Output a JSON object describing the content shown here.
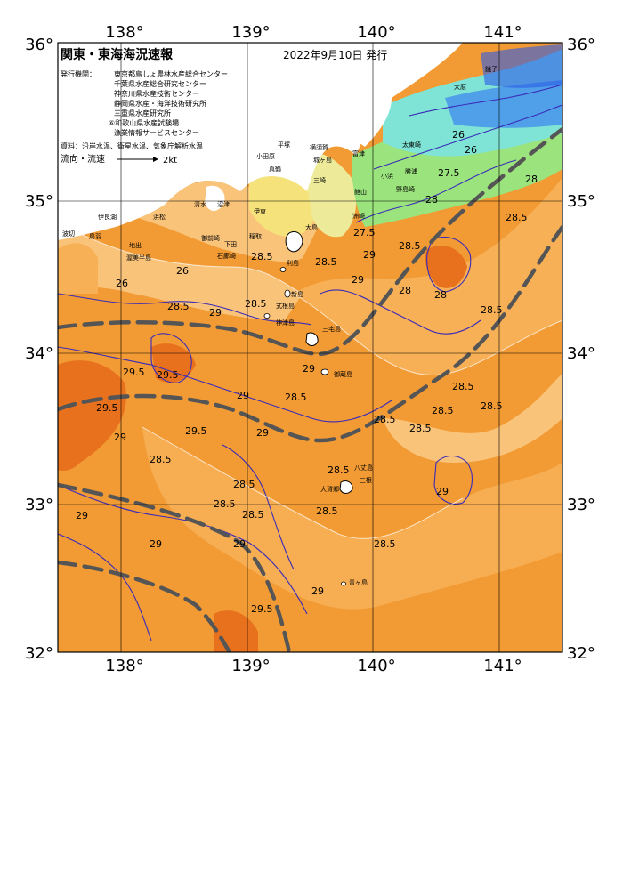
{
  "header": {
    "title": "関東・東海海況速報",
    "date": "2022年9月10日 発行",
    "org_label": "発行機関：",
    "orgs": [
      "東京都島しょ農林水産総合センター",
      "千葉県水産総合研究センター",
      "神奈川県水産技術センター",
      "静岡県水産・海洋技術研究所",
      "三重県水産研究所",
      "⑥和歌山県水産試験場",
      "漁業情報サービスセンター"
    ],
    "source": "資料：沿岸水温、衛星水温、気象庁解析水温",
    "current_label": "流向・流速",
    "current_scale": "2kt"
  },
  "axes": {
    "top": [
      "138°",
      "139°",
      "140°",
      "141°"
    ],
    "bottom": [
      "138°",
      "139°",
      "140°",
      "141°"
    ],
    "left": [
      "36°",
      "35°",
      "34°",
      "33°",
      "32°"
    ],
    "right": [
      "36°",
      "35°",
      "34°",
      "33°",
      "32°"
    ]
  },
  "isotherm_labels": [
    "26",
    "26",
    "26",
    "26",
    "27.5",
    "27.5",
    "28",
    "28",
    "28",
    "28",
    "28.5",
    "28.5",
    "28.5",
    "28.5",
    "28.5",
    "28.5",
    "28.5",
    "28.5",
    "28.5",
    "28.5",
    "28.5",
    "28.5",
    "28.5",
    "28.5",
    "28.5",
    "28.5",
    "28.5",
    "28.5",
    "28.5",
    "28.5",
    "29",
    "29",
    "29",
    "29",
    "29",
    "29",
    "29",
    "29",
    "29",
    "29",
    "29",
    "29",
    "29.5",
    "29.5",
    "29.5",
    "29.5",
    "29.5"
  ],
  "place_names": [
    "大原",
    "太東崎",
    "勝浦",
    "小浜",
    "館山",
    "洲崎",
    "平塚",
    "横須賀",
    "城ヶ島",
    "三崎",
    "小田原",
    "真鶴",
    "伊東",
    "稲取",
    "大島",
    "利島",
    "新島",
    "式根島",
    "神津島",
    "三宅島",
    "御蔵島",
    "八丈島",
    "三根",
    "大賀郷",
    "青ヶ島",
    "石廊崎",
    "下田",
    "沼津",
    "清水",
    "御前崎",
    "浜松",
    "地出",
    "渥美半島",
    "伊良湖",
    "波切",
    "鳥羽",
    "銚子",
    "野島崎",
    "富津"
  ],
  "colors": {
    "warmest": "#E8711D",
    "very_warm": "#EE8A26",
    "warm": "#F29B34",
    "mild_warm": "#F7B056",
    "light_orange": "#F9C37A",
    "yellow": "#F6E27A",
    "light_yellow": "#EDEB9A",
    "green": "#9BE37C",
    "cyan": "#7FE4D5",
    "blue": "#2B5AE8",
    "isotherm_line": "#3A2BB8",
    "front_line": "#555555",
    "land": "#FFFFFF"
  },
  "legend_arrow_icon": "arrow-right-icon"
}
